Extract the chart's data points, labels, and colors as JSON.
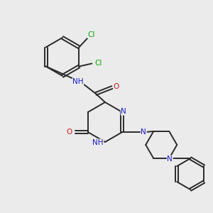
{
  "background_color": "#ebebeb",
  "bond_color": "#2a2a2a",
  "bond_lw": 1.4,
  "atom_colors": {
    "N": "#1a1acc",
    "O": "#cc1a1a",
    "Cl": "#00aa00",
    "C": "#2a2a2a",
    "H": "#2a2a2a"
  },
  "font_size": 7.5,
  "font_size_small": 7.0
}
